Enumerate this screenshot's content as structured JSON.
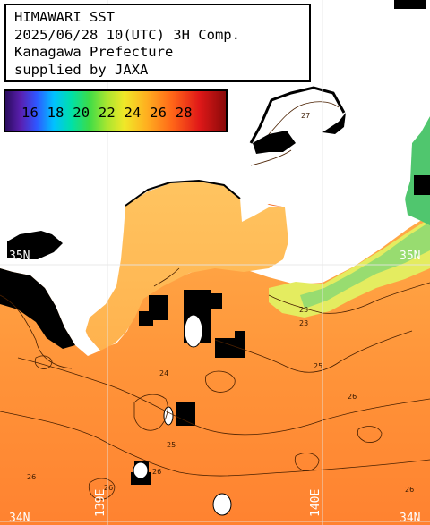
{
  "header": {
    "title": "HIMAWARI SST",
    "datetime": "2025/06/28 10(UTC) 3H Comp.",
    "region": "Kanagawa Prefecture",
    "credit": "supplied by JAXA"
  },
  "legend": {
    "labels": [
      "16",
      "18",
      "20",
      "22",
      "24",
      "26",
      "28"
    ],
    "min_value": 15,
    "max_value": 29
  },
  "grid": {
    "lat_labels": [
      "35N",
      "35N",
      "34N",
      "34N"
    ],
    "lon_labels": [
      "139E",
      "140E"
    ]
  },
  "contour_labels": [
    "27",
    "23",
    "23",
    "24",
    "25",
    "26",
    "26",
    "26",
    "26",
    "25",
    "26"
  ],
  "colors": {
    "land": "#ffffff",
    "cloud_mask": "#000000",
    "grid": "#d8d8d8",
    "sst_27": "#f05020",
    "sst_26": "#ff8a30",
    "sst_25": "#ffb050",
    "sst_24": "#f8d070",
    "sst_23": "#d8ec58",
    "sst_22": "#90e070",
    "sst_21": "#50c870"
  }
}
